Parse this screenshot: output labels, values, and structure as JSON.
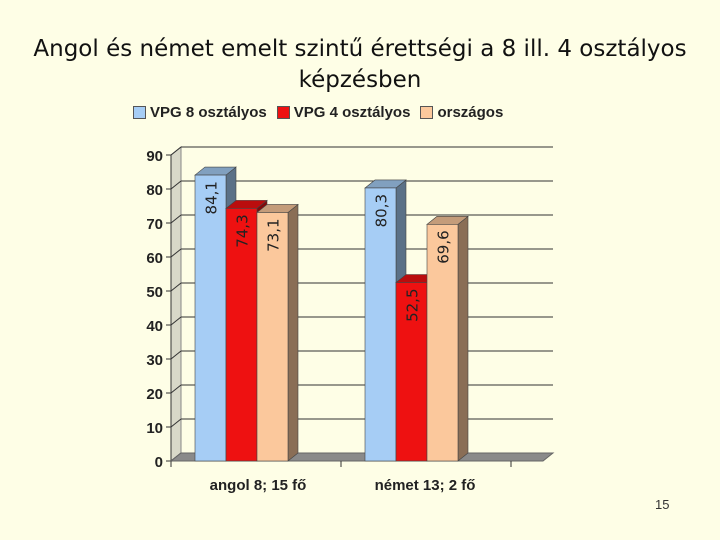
{
  "title": "Angol és német emelt szintű érettségi a 8 ill. 4 osztályos képzésben",
  "page_number": "15",
  "chart_data": {
    "type": "bar",
    "title": "Angol és német emelt szintű érettségi a 8 ill. 4 osztályos képzésben",
    "categories": [
      "angol 8; 15 fő",
      "német 13; 2 fő"
    ],
    "series": [
      {
        "name": "VPG 8 osztályos",
        "values": [
          84.1,
          80.3
        ],
        "labels": [
          "84,1",
          "80,3"
        ],
        "color": "#a6cdf5"
      },
      {
        "name": "VPG 4 osztályos",
        "values": [
          74.3,
          52.5
        ],
        "labels": [
          "74,3",
          "52,5"
        ],
        "color": "#ee1111"
      },
      {
        "name": "országos",
        "values": [
          73.1,
          69.6
        ],
        "labels": [
          "73,1",
          "69,6"
        ],
        "color": "#fbc89c"
      }
    ],
    "yticks": [
      "0",
      "10",
      "20",
      "30",
      "40",
      "50",
      "60",
      "70",
      "80",
      "90"
    ],
    "ylim": [
      0,
      90
    ],
    "grid": true,
    "legend_position": "top",
    "style": "3d"
  }
}
